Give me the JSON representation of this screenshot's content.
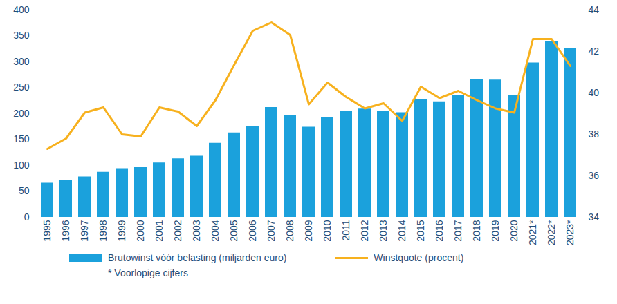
{
  "chart_data": {
    "type": "bar",
    "categories": [
      "1995",
      "1996",
      "1997",
      "1998",
      "1999",
      "2000",
      "2001",
      "2002",
      "2003",
      "2004",
      "2005",
      "2006",
      "2007",
      "2008",
      "2009",
      "2010",
      "2011",
      "2012",
      "2013",
      "2014",
      "2015",
      "2016",
      "2017",
      "2018",
      "2019",
      "2020",
      "2021*",
      "2022*",
      "2023*"
    ],
    "series": [
      {
        "name": "Brutowinst vóór belasting (miljarden euro)",
        "type": "bar",
        "color": "#1ba1dc",
        "values": [
          66,
          72,
          78,
          87,
          94,
          97,
          105,
          113,
          118,
          143,
          163,
          175,
          212,
          197,
          174,
          192,
          205,
          209,
          204,
          202,
          228,
          223,
          236,
          266,
          265,
          236,
          298,
          340,
          326
        ]
      },
      {
        "name": "Winstquote (procent)",
        "type": "line",
        "color": "#f7b11e",
        "axis": "y2",
        "values": [
          37.3,
          37.8,
          39.05,
          39.3,
          38.0,
          37.9,
          39.3,
          39.1,
          38.4,
          39.65,
          41.35,
          43.0,
          43.4,
          42.8,
          39.45,
          40.5,
          39.8,
          39.25,
          39.5,
          38.65,
          40.3,
          39.75,
          40.1,
          39.65,
          39.25,
          39.05,
          42.6,
          42.6,
          41.3
        ]
      }
    ],
    "ylim": [
      0,
      400
    ],
    "yticks": [
      0,
      50,
      100,
      150,
      200,
      250,
      300,
      350,
      400
    ],
    "y2lim": [
      34,
      44
    ],
    "y2ticks": [
      34,
      36,
      38,
      40,
      42,
      44
    ],
    "grid": false,
    "legend": "bottom",
    "annotations": [
      "* Voorlopige cijfers"
    ]
  }
}
